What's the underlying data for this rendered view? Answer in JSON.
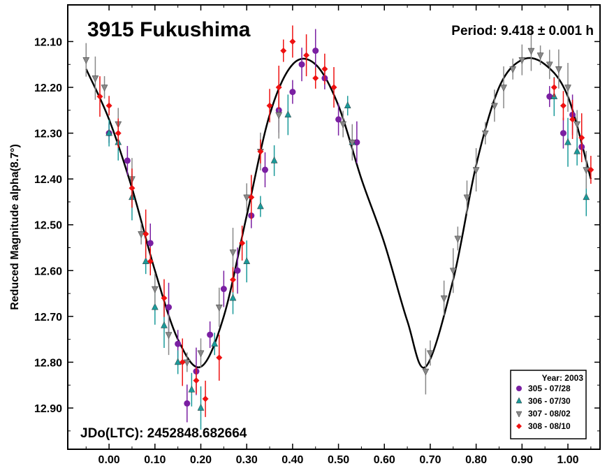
{
  "chart_data": {
    "type": "scatter",
    "title": "3915 Fukushima",
    "period_label": "Period: 9.418 ± 0.001 h",
    "jdo_label": "JDo(LTC): 2452848.682664",
    "ylabel": "Reduced Magnitude alpha(8.7°)",
    "xlabel": "",
    "xlim": [
      -0.09,
      1.07
    ],
    "ylim": [
      12.99,
      12.02
    ],
    "y_inverted": true,
    "grid": false,
    "x_ticks": [
      0.0,
      0.1,
      0.2,
      0.3,
      0.4,
      0.5,
      0.6,
      0.7,
      0.8,
      0.9,
      1.0
    ],
    "x_tick_labels": [
      "0.00",
      "0.10",
      "0.20",
      "0.30",
      "0.40",
      "0.50",
      "0.60",
      "0.70",
      "0.80",
      "0.90",
      "1.00"
    ],
    "y_ticks": [
      12.1,
      12.2,
      12.3,
      12.4,
      12.5,
      12.6,
      12.7,
      12.8,
      12.9
    ],
    "y_tick_labels": [
      "12.10",
      "12.20",
      "12.30",
      "12.40",
      "12.50",
      "12.60",
      "12.70",
      "12.80",
      "12.90"
    ],
    "legend": {
      "position": "bottom-right",
      "title": "Year: 2003"
    },
    "fit_curve": {
      "x": [
        -0.05,
        0.0,
        0.05,
        0.1,
        0.15,
        0.2,
        0.25,
        0.3,
        0.35,
        0.4,
        0.45,
        0.5,
        0.55,
        0.6,
        0.65,
        0.69,
        0.75,
        0.8,
        0.85,
        0.9,
        0.95,
        1.0,
        1.05
      ],
      "y": [
        12.16,
        12.27,
        12.42,
        12.6,
        12.75,
        12.81,
        12.7,
        12.48,
        12.26,
        12.15,
        12.15,
        12.24,
        12.4,
        12.54,
        12.71,
        12.81,
        12.62,
        12.37,
        12.2,
        12.14,
        12.15,
        12.22,
        12.4
      ]
    },
    "series": [
      {
        "name": "305 - 07/28",
        "color": "#7a1fa2",
        "marker": "circle",
        "x": [
          0.0,
          0.04,
          0.09,
          0.13,
          0.15,
          0.17,
          0.19,
          0.22,
          0.25,
          0.28,
          0.31,
          0.34,
          0.37,
          0.4,
          0.42,
          0.45,
          0.47,
          0.5,
          0.54,
          0.96,
          0.99,
          1.01,
          1.03
        ],
        "y": [
          12.3,
          12.36,
          12.54,
          12.68,
          12.76,
          12.89,
          12.82,
          12.74,
          12.64,
          12.6,
          12.48,
          12.38,
          12.25,
          12.21,
          12.15,
          12.12,
          12.18,
          12.27,
          12.32,
          12.22,
          12.3,
          12.26,
          12.33
        ]
      },
      {
        "name": "306 - 07/30",
        "color": "#1a9a9a",
        "marker": "triangle-up",
        "x": [
          0.0,
          0.02,
          0.05,
          0.08,
          0.1,
          0.12,
          0.15,
          0.18,
          0.2,
          0.23,
          0.27,
          0.3,
          0.33,
          0.36,
          0.39,
          0.52,
          0.53,
          0.97,
          1.0,
          1.02,
          1.04
        ],
        "y": [
          12.3,
          12.32,
          12.44,
          12.58,
          12.68,
          12.72,
          12.8,
          12.86,
          12.9,
          12.76,
          12.66,
          12.58,
          12.46,
          12.36,
          12.26,
          12.24,
          12.32,
          12.22,
          12.32,
          12.34,
          12.44
        ]
      },
      {
        "name": "307 - 08/02",
        "color": "#888888",
        "marker": "triangle-down",
        "x": [
          -0.05,
          -0.03,
          -0.01,
          0.02,
          0.05,
          0.07,
          0.1,
          0.13,
          0.17,
          0.2,
          0.24,
          0.27,
          0.3,
          0.33,
          0.37,
          0.51,
          0.53,
          0.69,
          0.7,
          0.73,
          0.75,
          0.76,
          0.78,
          0.8,
          0.82,
          0.84,
          0.86,
          0.88,
          0.9,
          0.92,
          0.94,
          0.96,
          0.98,
          1.0,
          1.02,
          1.04
        ],
        "y": [
          12.14,
          12.18,
          12.2,
          12.28,
          12.4,
          12.52,
          12.64,
          12.74,
          12.8,
          12.78,
          12.68,
          12.56,
          12.44,
          12.34,
          12.26,
          12.28,
          12.32,
          12.82,
          12.78,
          12.66,
          12.6,
          12.53,
          12.44,
          12.38,
          12.3,
          12.24,
          12.2,
          12.16,
          12.14,
          12.12,
          12.13,
          12.15,
          12.16,
          12.2,
          12.28,
          12.38
        ]
      },
      {
        "name": "308 - 08/10",
        "color": "#ee1111",
        "marker": "diamond",
        "x": [
          -0.02,
          0.0,
          0.02,
          0.05,
          0.08,
          0.09,
          0.12,
          0.16,
          0.19,
          0.21,
          0.24,
          0.27,
          0.29,
          0.31,
          0.33,
          0.35,
          0.37,
          0.38,
          0.4,
          0.43,
          0.45,
          0.47,
          0.49,
          0.97,
          0.99,
          1.01,
          1.03,
          1.05
        ],
        "y": [
          12.22,
          12.24,
          12.3,
          12.42,
          12.52,
          12.58,
          12.66,
          12.8,
          12.84,
          12.88,
          12.79,
          12.62,
          12.54,
          12.44,
          12.34,
          12.24,
          12.2,
          12.12,
          12.1,
          12.13,
          12.18,
          12.16,
          12.2,
          12.2,
          12.24,
          12.27,
          12.31,
          12.38
        ]
      }
    ]
  }
}
